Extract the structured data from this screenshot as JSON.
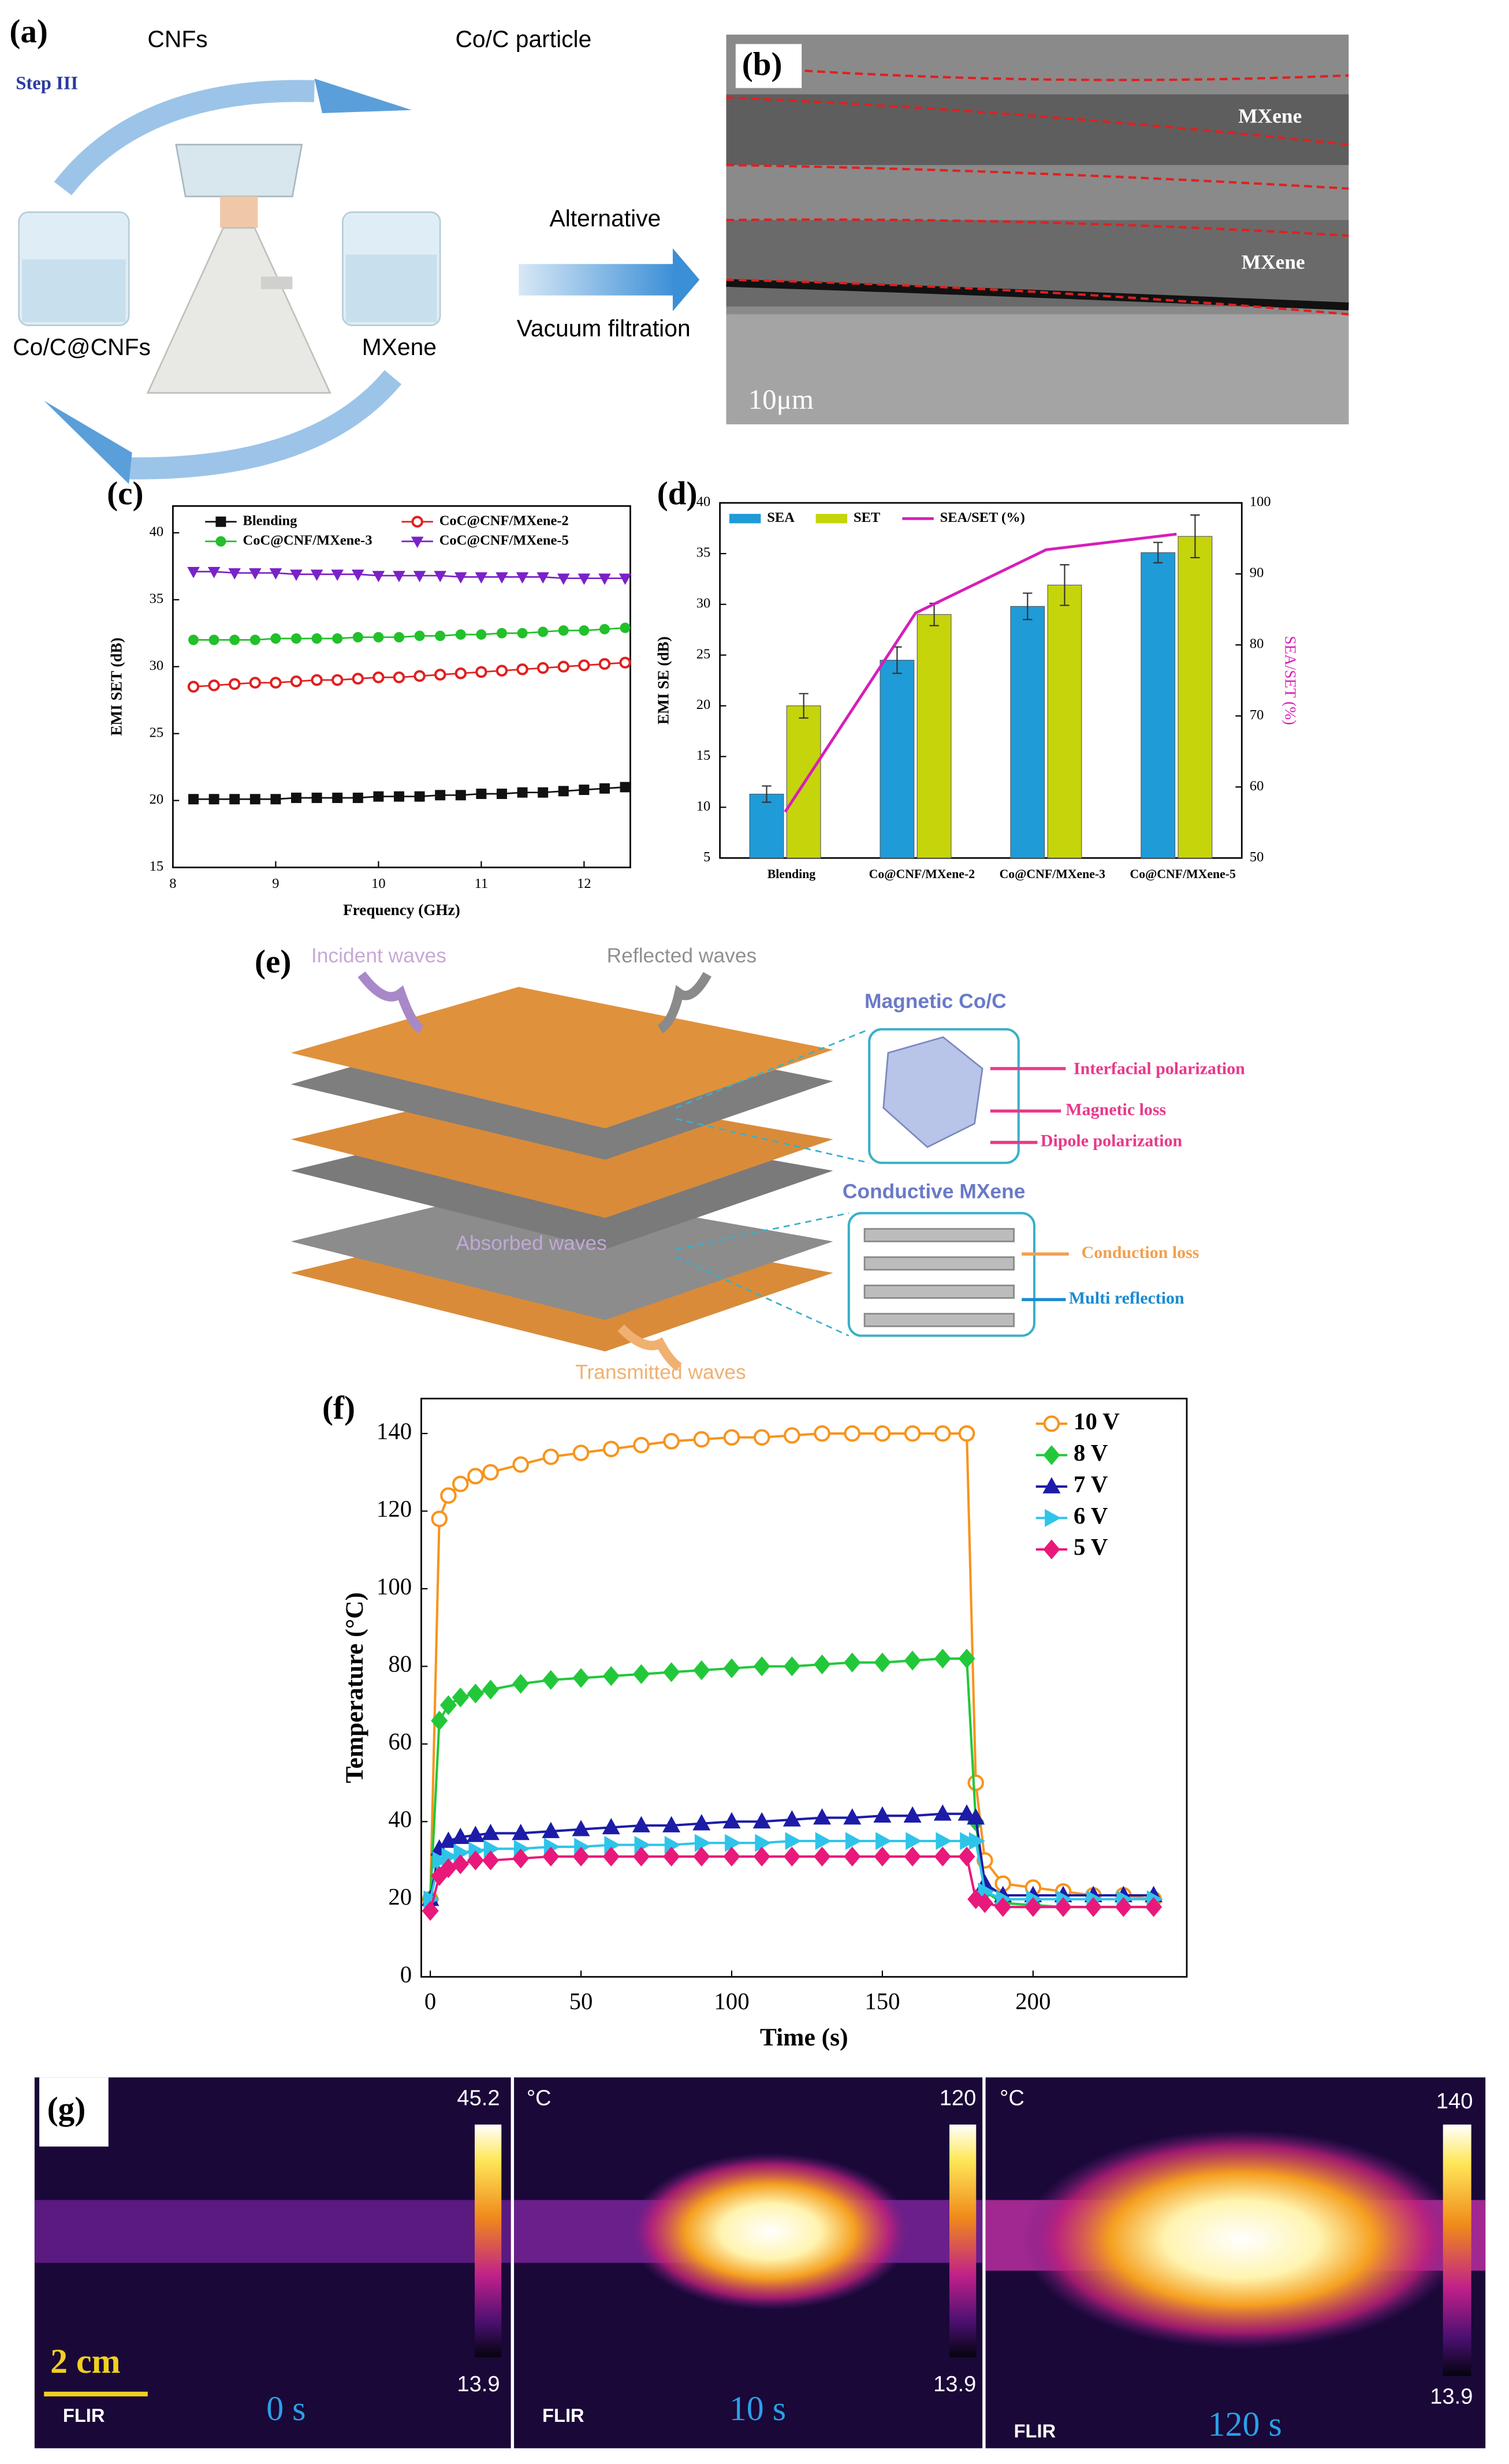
{
  "panels": {
    "a": {
      "label": "(a)",
      "cnfs": "CNFs",
      "particle": "Co/C particle",
      "step": "Step III",
      "left": "Co/C@CNFs",
      "right": "MXene",
      "arrow_top": "Alternative",
      "arrow_bottom": "Vacuum filtration"
    },
    "b": {
      "label": "(b)",
      "layer1": "MXene",
      "layer2": "MXene",
      "scale": "10μm"
    },
    "c": {
      "label": "(c)"
    },
    "d": {
      "label": "(d)"
    },
    "e": {
      "label": "(e)",
      "incident": "Incident waves",
      "reflected": "Reflected waves",
      "absorbed": "Absorbed waves",
      "transmitted": "Transmitted waves",
      "magnetic": "Magnetic Co/C",
      "interfacial": "Interfacial polarization",
      "magnetic_loss": "Magnetic loss",
      "dipole": "Dipole polarization",
      "conductive": "Conductive MXene",
      "conduction": "Conduction loss",
      "multi": "Multi reflection"
    },
    "f": {
      "label": "(f)"
    },
    "g": {
      "label": "(g)",
      "scale": "2 cm",
      "images": [
        {
          "max": "45.2",
          "min": "13.9",
          "time": "0 s",
          "brand": "FLIR"
        },
        {
          "unit": "°C",
          "max": "120",
          "min": "13.9",
          "time": "10 s",
          "brand": "FLIR"
        },
        {
          "unit": "°C",
          "max": "140",
          "min": "13.9",
          "time": "120 s",
          "brand": "FLIR"
        }
      ]
    }
  },
  "chart_data": [
    {
      "type": "line",
      "x_label": "Frequency (GHz)",
      "y_label": "EMI SET (dB)",
      "x": [
        8.2,
        8.4,
        8.6,
        8.8,
        9.0,
        9.2,
        9.4,
        9.6,
        9.8,
        10.0,
        10.2,
        10.4,
        10.6,
        10.8,
        11.0,
        11.2,
        11.4,
        11.6,
        11.8,
        12.0,
        12.2,
        12.4
      ],
      "xlim": [
        8,
        12.45
      ],
      "xticks": [
        8,
        9,
        10,
        11,
        12
      ],
      "ylim": [
        15,
        42
      ],
      "yticks": [
        15,
        20,
        25,
        30,
        35,
        40
      ],
      "legend": {
        "loc": "upper center",
        "ncol": 2
      },
      "series": [
        {
          "name": "Blending",
          "color": "#111111",
          "marker": "square",
          "values": [
            20.1,
            20.1,
            20.1,
            20.1,
            20.1,
            20.2,
            20.2,
            20.2,
            20.2,
            20.3,
            20.3,
            20.3,
            20.4,
            20.4,
            20.5,
            20.5,
            20.6,
            20.6,
            20.7,
            20.8,
            20.9,
            21.0
          ]
        },
        {
          "name": "CoC@CNF/MXene-2",
          "color": "#e02020",
          "marker": "circle",
          "hollow": true,
          "values": [
            28.5,
            28.6,
            28.7,
            28.8,
            28.8,
            28.9,
            29.0,
            29.0,
            29.1,
            29.2,
            29.2,
            29.3,
            29.4,
            29.5,
            29.6,
            29.7,
            29.8,
            29.9,
            30.0,
            30.1,
            30.2,
            30.3
          ]
        },
        {
          "name": "CoC@CNF/MXene-3",
          "color": "#22c02a",
          "marker": "circle",
          "values": [
            32.0,
            32.0,
            32.0,
            32.0,
            32.1,
            32.1,
            32.1,
            32.1,
            32.2,
            32.2,
            32.2,
            32.3,
            32.3,
            32.4,
            32.4,
            32.5,
            32.5,
            32.6,
            32.7,
            32.7,
            32.8,
            32.9
          ]
        },
        {
          "name": "CoC@CNF/MXene-5",
          "color": "#7a22c8",
          "marker": "triangle-down",
          "values": [
            37.1,
            37.1,
            37.0,
            37.0,
            37.0,
            36.9,
            36.9,
            36.9,
            36.9,
            36.8,
            36.8,
            36.8,
            36.8,
            36.7,
            36.7,
            36.7,
            36.7,
            36.7,
            36.6,
            36.6,
            36.6,
            36.6
          ]
        }
      ]
    },
    {
      "type": "bar",
      "y_label": "EMI SE (dB)",
      "y2_label": "SEA/SET (%)",
      "categories": [
        "Blending",
        "Co@CNF/MXene-2",
        "Co@CNF/MXene-3",
        "Co@CNF/MXene-5"
      ],
      "ylim": [
        5,
        40
      ],
      "yticks": [
        5,
        10,
        15,
        20,
        25,
        30,
        35,
        40
      ],
      "y2lim": [
        50,
        100
      ],
      "y2ticks": [
        50,
        60,
        70,
        80,
        90,
        100
      ],
      "legend": {
        "loc": "upper left",
        "ncol": 3
      },
      "series": [
        {
          "name": "SEA",
          "color": "#1f9bd8",
          "values": [
            11.3,
            24.5,
            29.8,
            35.1
          ],
          "errors": [
            0.8,
            1.3,
            1.3,
            1.0
          ]
        },
        {
          "name": "SET",
          "color": "#c6d40c",
          "values": [
            20.0,
            29.0,
            31.9,
            36.7
          ],
          "errors": [
            1.2,
            1.1,
            2.0,
            2.1
          ]
        },
        {
          "name": "SEA/SET (%)",
          "color": "#d61fb8",
          "axis": "y2",
          "values": [
            56.5,
            84.5,
            93.4,
            95.6
          ]
        }
      ]
    },
    {
      "type": "line",
      "x_label": "Time (s)",
      "y_label": "Temperature (°C)",
      "x": [
        0,
        3,
        6,
        10,
        15,
        20,
        30,
        40,
        50,
        60,
        70,
        80,
        90,
        100,
        110,
        120,
        130,
        140,
        150,
        160,
        170,
        178,
        181,
        184,
        190,
        200,
        210,
        220,
        230,
        240
      ],
      "xlim": [
        -3,
        251
      ],
      "xticks": [
        0,
        50,
        100,
        150,
        200
      ],
      "ylim": [
        0,
        149
      ],
      "yticks": [
        0,
        20,
        40,
        60,
        80,
        100,
        120,
        140
      ],
      "legend": {
        "loc": "upper right",
        "ncol": 1
      },
      "series": [
        {
          "name": "10 V",
          "color": "#f7941d",
          "marker": "circle",
          "hollow": true,
          "values": [
            20,
            118,
            124,
            127,
            129,
            130,
            132,
            134,
            135,
            136,
            137,
            138,
            138.5,
            139,
            139,
            139.5,
            140,
            140,
            140,
            140,
            140,
            140,
            50,
            30,
            24,
            23,
            22,
            21,
            21,
            20
          ]
        },
        {
          "name": "8 V",
          "color": "#22c83a",
          "marker": "diamond",
          "values": [
            20,
            66,
            70,
            72,
            73,
            74,
            75.5,
            76.5,
            77,
            77.5,
            78,
            78.5,
            79,
            79.5,
            80,
            80,
            80.5,
            81,
            81,
            81.5,
            82,
            82,
            40,
            22,
            19,
            18.5,
            18,
            18,
            18,
            18
          ]
        },
        {
          "name": "7 V",
          "color": "#1c1ca8",
          "marker": "triangle-up",
          "values": [
            20,
            33,
            35,
            36,
            36.5,
            37,
            37,
            37.5,
            38,
            38.5,
            39,
            39,
            39.5,
            40,
            40,
            40.5,
            41,
            41,
            41.5,
            41.5,
            42,
            42,
            41,
            24,
            21,
            21,
            21,
            21,
            21,
            21
          ]
        },
        {
          "name": "6 V",
          "color": "#2ec4ea",
          "marker": "triangle-right",
          "values": [
            20,
            30,
            31,
            32,
            32.5,
            33,
            33,
            33.5,
            33.5,
            34,
            34,
            34,
            34.5,
            34.5,
            34.5,
            35,
            35,
            35,
            35,
            35,
            35,
            35,
            35,
            22,
            20,
            20,
            20,
            20,
            20,
            20
          ]
        },
        {
          "name": "5 V",
          "color": "#e8197a",
          "marker": "diamond",
          "values": [
            17,
            26,
            28,
            29,
            30,
            30,
            30.5,
            31,
            31,
            31,
            31,
            31,
            31,
            31,
            31,
            31,
            31,
            31,
            31,
            31,
            31,
            31,
            20,
            19,
            18,
            18,
            18,
            18,
            18,
            18
          ]
        }
      ]
    }
  ]
}
